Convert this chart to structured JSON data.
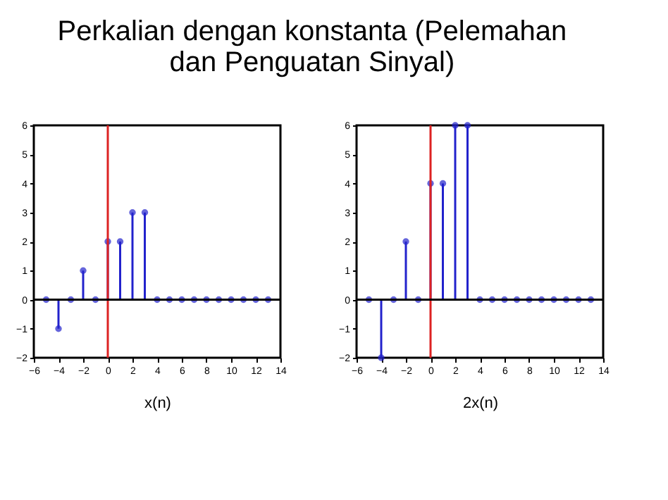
{
  "chart_data": [
    {
      "type": "lollipop",
      "title": "Perkalian dengan konstanta (Pelemahan dan Penguatan Sinyal)",
      "xlabel": "x(n)",
      "x": [
        -5,
        -4,
        -3,
        -2,
        -1,
        0,
        1,
        2,
        3,
        4,
        5,
        6,
        7,
        8,
        9,
        10,
        11,
        12,
        13
      ],
      "series": [
        {
          "color": "#2222cc",
          "values": [
            0,
            -1,
            0,
            1,
            0,
            2,
            2,
            3,
            3,
            0,
            0,
            0,
            0,
            0,
            0,
            0,
            0,
            0,
            0
          ]
        }
      ],
      "xlim": [
        -6,
        14
      ],
      "xticks": [
        -6,
        -4,
        -2,
        0,
        2,
        4,
        6,
        8,
        10,
        12,
        14
      ],
      "ylim": [
        -2,
        6
      ],
      "yticks": [
        -2,
        -1,
        0,
        1,
        2,
        3,
        4,
        5,
        6
      ],
      "ref_lines": [
        {
          "axis": "x",
          "value": 0,
          "color": "#dd2222"
        },
        {
          "axis": "y",
          "value": 0,
          "color": "#000000"
        }
      ],
      "marker": "circle",
      "grid": false,
      "legend": false
    },
    {
      "type": "lollipop",
      "xlabel": "2x(n)",
      "x": [
        -5,
        -4,
        -3,
        -2,
        -1,
        0,
        1,
        2,
        3,
        4,
        5,
        6,
        7,
        8,
        9,
        10,
        11,
        12,
        13
      ],
      "series": [
        {
          "color": "#2222cc",
          "values": [
            0,
            -2,
            0,
            2,
            0,
            4,
            4,
            6,
            6,
            0,
            0,
            0,
            0,
            0,
            0,
            0,
            0,
            0,
            0
          ]
        }
      ],
      "xlim": [
        -6,
        14
      ],
      "xticks": [
        -6,
        -4,
        -2,
        0,
        2,
        4,
        6,
        8,
        10,
        12,
        14
      ],
      "ylim": [
        -2,
        6
      ],
      "yticks": [
        -2,
        -1,
        0,
        1,
        2,
        3,
        4,
        5,
        6
      ],
      "ref_lines": [
        {
          "axis": "x",
          "value": 0,
          "color": "#dd2222"
        },
        {
          "axis": "y",
          "value": 0,
          "color": "#000000"
        }
      ],
      "marker": "circle",
      "grid": false,
      "legend": false
    }
  ]
}
